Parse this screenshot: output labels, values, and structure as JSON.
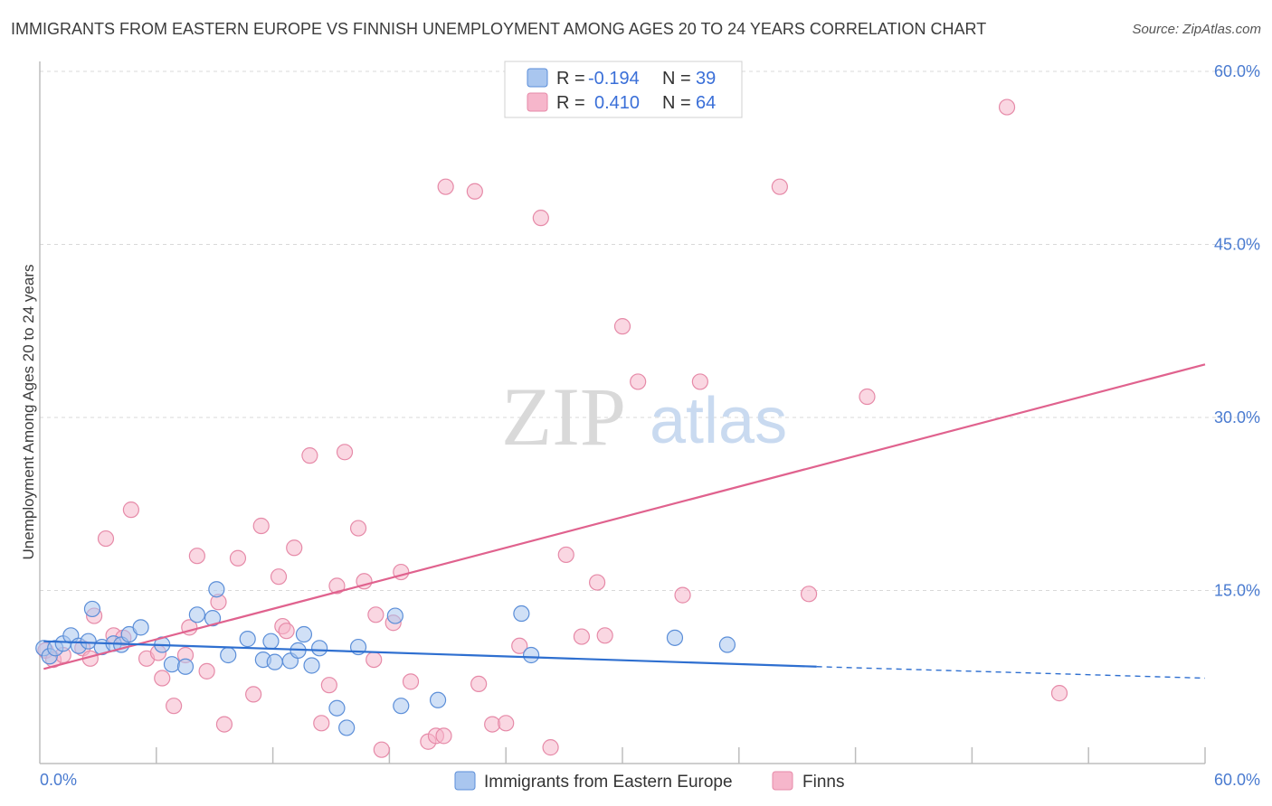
{
  "header": {
    "title": "IMMIGRANTS FROM EASTERN EUROPE VS FINNISH UNEMPLOYMENT AMONG AGES 20 TO 24 YEARS CORRELATION CHART",
    "source": "Source: ZipAtlas.com"
  },
  "watermark": {
    "zip": "ZIP",
    "atlas": "atlas"
  },
  "legend_box": {
    "r_label": "R =",
    "n_label": "N =",
    "rows": [
      {
        "r": "-0.194",
        "n": "39",
        "color": "#a9c6ef"
      },
      {
        "r": "0.410",
        "n": "64",
        "color": "#f6b6cb"
      }
    ]
  },
  "colors": {
    "blue_fill": "#a9c6ef",
    "blue_stroke": "#5b8ed8",
    "blue_line": "#2e6fd0",
    "pink_fill": "#f6b6cb",
    "pink_stroke": "#e68aa8",
    "pink_line": "#e0628e",
    "tick": "#4a7bd0",
    "grid": "#d9d9d9"
  },
  "chart_data": {
    "type": "scatter",
    "title": "IMMIGRANTS FROM EASTERN EUROPE VS FINNISH UNEMPLOYMENT AMONG AGES 20 TO 24 YEARS CORRELATION CHART",
    "xlabel": "",
    "ylabel": "Unemployment Among Ages 20 to 24 years",
    "xlim": [
      0,
      60
    ],
    "ylim": [
      0,
      60
    ],
    "x_tick_labels": [
      "0.0%",
      "60.0%"
    ],
    "y_ticks": [
      15,
      30,
      45,
      60
    ],
    "y_tick_labels": [
      "15.0%",
      "30.0%",
      "45.0%",
      "60.0%"
    ],
    "legend": [
      "Immigrants from Eastern Europe",
      "Finns"
    ],
    "series": [
      {
        "name": "Immigrants from Eastern Europe",
        "color": "#a9c6ef",
        "r": -0.194,
        "n": 39,
        "trend": {
          "x0": 0.2,
          "y0": 10.6,
          "x1": 40.0,
          "y1": 8.4,
          "dash_x1": 60.0,
          "dash_y1": 7.4
        },
        "points": [
          [
            0.2,
            10.0
          ],
          [
            0.5,
            9.3
          ],
          [
            0.8,
            10.0
          ],
          [
            1.2,
            10.4
          ],
          [
            1.6,
            11.1
          ],
          [
            2.0,
            10.2
          ],
          [
            2.5,
            10.6
          ],
          [
            3.2,
            10.1
          ],
          [
            3.8,
            10.4
          ],
          [
            4.2,
            10.3
          ],
          [
            4.6,
            11.2
          ],
          [
            5.2,
            11.8
          ],
          [
            6.3,
            10.3
          ],
          [
            6.8,
            8.6
          ],
          [
            7.5,
            8.4
          ],
          [
            8.1,
            12.9
          ],
          [
            8.9,
            12.6
          ],
          [
            9.1,
            15.1
          ],
          [
            9.7,
            9.4
          ],
          [
            10.7,
            10.8
          ],
          [
            11.5,
            9.0
          ],
          [
            11.9,
            10.6
          ],
          [
            12.1,
            8.8
          ],
          [
            12.9,
            8.9
          ],
          [
            13.3,
            9.8
          ],
          [
            13.6,
            11.2
          ],
          [
            14.0,
            8.5
          ],
          [
            14.4,
            10.0
          ],
          [
            15.3,
            4.8
          ],
          [
            15.8,
            3.1
          ],
          [
            16.4,
            10.1
          ],
          [
            18.3,
            12.8
          ],
          [
            18.6,
            5.0
          ],
          [
            20.5,
            5.5
          ],
          [
            24.8,
            13.0
          ],
          [
            25.3,
            9.4
          ],
          [
            32.7,
            10.9
          ],
          [
            35.4,
            10.3
          ],
          [
            2.7,
            13.4
          ]
        ]
      },
      {
        "name": "Finns",
        "color": "#f6b6cb",
        "r": 0.41,
        "n": 64,
        "trend": {
          "x0": 0.2,
          "y0": 8.2,
          "x1": 60.0,
          "y1": 34.6
        },
        "points": [
          [
            0.3,
            9.8
          ],
          [
            0.7,
            9.0
          ],
          [
            1.2,
            9.4
          ],
          [
            2.2,
            10.0
          ],
          [
            2.6,
            9.1
          ],
          [
            2.8,
            12.8
          ],
          [
            3.4,
            19.5
          ],
          [
            3.8,
            11.1
          ],
          [
            4.3,
            10.9
          ],
          [
            4.7,
            22.0
          ],
          [
            5.5,
            9.1
          ],
          [
            6.1,
            9.6
          ],
          [
            6.3,
            7.4
          ],
          [
            6.9,
            5.0
          ],
          [
            7.5,
            9.4
          ],
          [
            7.7,
            11.8
          ],
          [
            8.1,
            18.0
          ],
          [
            8.6,
            8.0
          ],
          [
            9.2,
            14.0
          ],
          [
            9.5,
            3.4
          ],
          [
            10.2,
            17.8
          ],
          [
            11.0,
            6.0
          ],
          [
            11.4,
            20.6
          ],
          [
            12.3,
            16.2
          ],
          [
            12.5,
            11.9
          ],
          [
            12.7,
            11.5
          ],
          [
            13.1,
            18.7
          ],
          [
            13.9,
            26.7
          ],
          [
            14.5,
            3.5
          ],
          [
            14.9,
            6.8
          ],
          [
            15.3,
            15.4
          ],
          [
            15.7,
            27.0
          ],
          [
            16.4,
            20.4
          ],
          [
            16.7,
            15.8
          ],
          [
            17.2,
            9.0
          ],
          [
            17.3,
            12.9
          ],
          [
            17.6,
            1.2
          ],
          [
            18.2,
            12.2
          ],
          [
            18.6,
            16.6
          ],
          [
            19.1,
            7.1
          ],
          [
            20.0,
            1.9
          ],
          [
            20.4,
            2.4
          ],
          [
            20.8,
            2.4
          ],
          [
            20.9,
            50.0
          ],
          [
            22.4,
            49.6
          ],
          [
            22.6,
            6.9
          ],
          [
            23.3,
            3.4
          ],
          [
            24.0,
            3.5
          ],
          [
            24.7,
            10.2
          ],
          [
            25.8,
            47.3
          ],
          [
            26.3,
            1.4
          ],
          [
            27.1,
            18.1
          ],
          [
            27.9,
            11.0
          ],
          [
            28.7,
            15.7
          ],
          [
            29.1,
            11.1
          ],
          [
            30.0,
            37.9
          ],
          [
            30.8,
            33.1
          ],
          [
            33.1,
            14.6
          ],
          [
            34.0,
            33.1
          ],
          [
            38.1,
            50.0
          ],
          [
            39.6,
            14.7
          ],
          [
            42.6,
            31.8
          ],
          [
            49.8,
            56.9
          ],
          [
            52.5,
            6.1
          ]
        ]
      }
    ]
  }
}
